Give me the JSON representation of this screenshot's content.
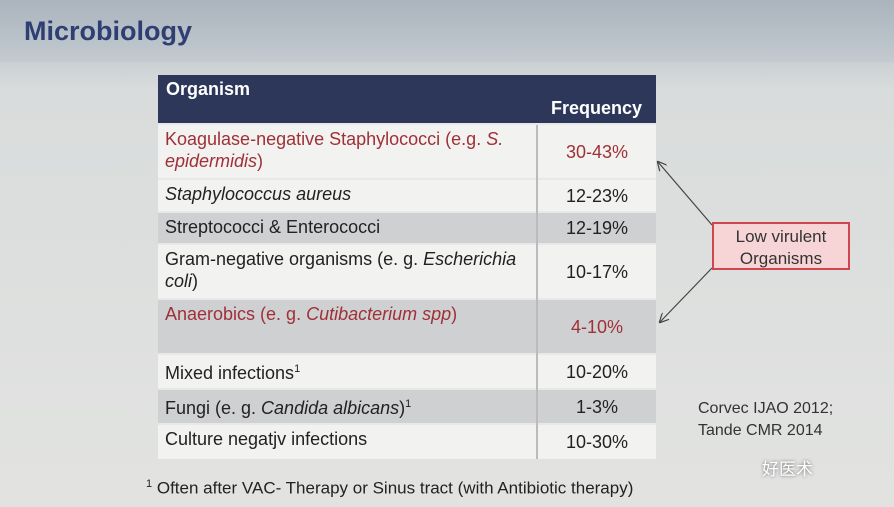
{
  "header": {
    "title": "Microbiology"
  },
  "table": {
    "columns": [
      "Organism",
      "Frequency"
    ],
    "rows": [
      {
        "organism": [
          {
            "text": "Koagulase-negative Staphylococci (e.g. "
          },
          {
            "text": "S. epidermidis",
            "style": "italic"
          },
          {
            "text": ")"
          }
        ],
        "frequency": "30-43%",
        "highlight": true,
        "shade": false
      },
      {
        "organism": [
          {
            "text": "Staphylococcus aureus",
            "style": "italic"
          }
        ],
        "frequency": "12-23%",
        "highlight": false,
        "shade": false
      },
      {
        "organism": [
          {
            "text": "Streptococci & Enterococci"
          }
        ],
        "frequency": "12-19%",
        "highlight": false,
        "shade": true
      },
      {
        "organism": [
          {
            "text": "Gram-negative organisms (e. g. "
          },
          {
            "text": "Escherichia coli",
            "style": "italic"
          },
          {
            "text": ")"
          }
        ],
        "frequency": "10-17%",
        "highlight": false,
        "shade": false
      },
      {
        "organism": [
          {
            "text": "Anaerobics (e. g. "
          },
          {
            "text": "Cutibacterium spp",
            "style": "italic"
          },
          {
            "text": ")"
          }
        ],
        "frequency": "4-10%",
        "highlight": true,
        "shade": true
      },
      {
        "organism": [
          {
            "text": "Mixed infections"
          },
          {
            "text": "1",
            "style": "sup"
          }
        ],
        "frequency": "10-20%",
        "highlight": false,
        "shade": false
      },
      {
        "organism": [
          {
            "text": "Fungi (e. g. "
          },
          {
            "text": "Candida albicans",
            "style": "italic"
          },
          {
            "text": ")"
          },
          {
            "text": "1",
            "style": "sup"
          }
        ],
        "frequency": "1-3%",
        "highlight": false,
        "shade": true
      },
      {
        "organism": [
          {
            "text": "Culture negatjv infections"
          }
        ],
        "frequency": "10-30%",
        "highlight": false,
        "shade": false
      }
    ]
  },
  "callout": {
    "text": "Low virulent Organisms"
  },
  "reference": {
    "lines": [
      "Corvec IJAO 2012;",
      "Tande CMR 2014"
    ]
  },
  "footnote": {
    "mark": "1",
    "text": "Often after VAC- Therapy or Sinus tract (with Antibiotic therapy)"
  },
  "watermark": {
    "text": "好医术"
  }
}
